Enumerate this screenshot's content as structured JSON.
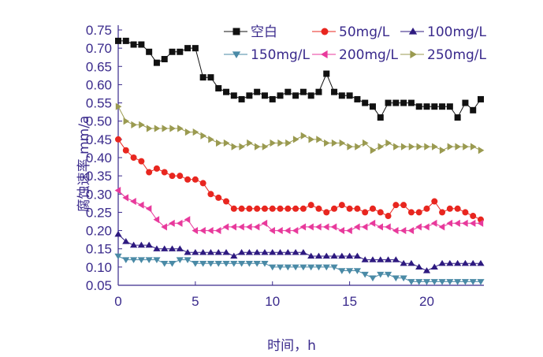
{
  "chart_data": {
    "type": "line",
    "title": "",
    "xlabel": "时间，h",
    "ylabel": "腐蚀速率,mm/a",
    "xlim": [
      0,
      23.5
    ],
    "ylim": [
      0.05,
      0.75
    ],
    "x_ticks": [
      "0",
      "5",
      "10",
      "15",
      "20"
    ],
    "y_ticks": [
      "0.05",
      "0.10",
      "0.15",
      "0.20",
      "0.25",
      "0.30",
      "0.35",
      "0.40",
      "0.45",
      "0.50",
      "0.55",
      "0.60",
      "0.65",
      "0.70",
      "0.75"
    ],
    "grid": false,
    "legend_position": "top-right",
    "x": [
      0.0,
      0.5,
      1.0,
      1.5,
      2.0,
      2.5,
      3.0,
      3.5,
      4.0,
      4.5,
      5.0,
      5.5,
      6.0,
      6.5,
      7.0,
      7.5,
      8.0,
      8.5,
      9.0,
      9.5,
      10.0,
      10.5,
      11.0,
      11.5,
      12.0,
      12.5,
      13.0,
      13.5,
      14.0,
      14.5,
      15.0,
      15.5,
      16.0,
      16.5,
      17.0,
      17.5,
      18.0,
      18.5,
      19.0,
      19.5,
      20.0,
      20.5,
      21.0,
      21.5,
      22.0,
      22.5,
      23.0,
      23.5
    ],
    "series": [
      {
        "name": "空白",
        "color": "#111111",
        "marker": "square",
        "values": [
          0.72,
          0.72,
          0.71,
          0.71,
          0.69,
          0.66,
          0.67,
          0.69,
          0.69,
          0.7,
          0.7,
          0.62,
          0.62,
          0.59,
          0.58,
          0.57,
          0.56,
          0.57,
          0.58,
          0.57,
          0.56,
          0.57,
          0.58,
          0.57,
          0.58,
          0.57,
          0.58,
          0.63,
          0.58,
          0.57,
          0.57,
          0.56,
          0.55,
          0.54,
          0.51,
          0.55,
          0.55,
          0.55,
          0.55,
          0.54,
          0.54,
          0.54,
          0.54,
          0.54,
          0.51,
          0.55,
          0.53,
          0.56
        ]
      },
      {
        "name": "50mg/L",
        "color": "#e8261f",
        "marker": "circle",
        "values": [
          0.45,
          0.42,
          0.4,
          0.39,
          0.36,
          0.37,
          0.36,
          0.35,
          0.35,
          0.34,
          0.34,
          0.33,
          0.3,
          0.29,
          0.28,
          0.26,
          0.26,
          0.26,
          0.26,
          0.26,
          0.26,
          0.26,
          0.26,
          0.26,
          0.26,
          0.27,
          0.26,
          0.25,
          0.26,
          0.27,
          0.26,
          0.26,
          0.25,
          0.26,
          0.25,
          0.24,
          0.27,
          0.27,
          0.25,
          0.25,
          0.26,
          0.28,
          0.25,
          0.26,
          0.26,
          0.25,
          0.24,
          0.23
        ]
      },
      {
        "name": "100mg/L",
        "color": "#2e1a80",
        "marker": "triangle-up",
        "values": [
          0.19,
          0.17,
          0.16,
          0.16,
          0.16,
          0.15,
          0.15,
          0.15,
          0.15,
          0.14,
          0.14,
          0.14,
          0.14,
          0.14,
          0.14,
          0.13,
          0.14,
          0.14,
          0.14,
          0.14,
          0.14,
          0.14,
          0.14,
          0.14,
          0.14,
          0.13,
          0.13,
          0.13,
          0.13,
          0.13,
          0.13,
          0.13,
          0.12,
          0.12,
          0.12,
          0.12,
          0.12,
          0.11,
          0.11,
          0.1,
          0.09,
          0.1,
          0.11,
          0.11,
          0.11,
          0.11,
          0.11,
          0.11
        ]
      },
      {
        "name": "150mg/L",
        "color": "#4a8aa6",
        "marker": "triangle-down",
        "values": [
          0.13,
          0.12,
          0.12,
          0.12,
          0.12,
          0.12,
          0.11,
          0.11,
          0.12,
          0.12,
          0.11,
          0.11,
          0.11,
          0.11,
          0.11,
          0.11,
          0.11,
          0.11,
          0.11,
          0.11,
          0.1,
          0.1,
          0.1,
          0.1,
          0.1,
          0.1,
          0.1,
          0.1,
          0.1,
          0.09,
          0.09,
          0.09,
          0.08,
          0.07,
          0.08,
          0.08,
          0.07,
          0.07,
          0.06,
          0.06,
          0.06,
          0.06,
          0.06,
          0.06,
          0.06,
          0.06,
          0.06,
          0.06
        ]
      },
      {
        "name": "200mg/L",
        "color": "#e83a9c",
        "marker": "triangle-left",
        "values": [
          0.31,
          0.29,
          0.28,
          0.27,
          0.26,
          0.23,
          0.21,
          0.22,
          0.22,
          0.23,
          0.2,
          0.2,
          0.2,
          0.2,
          0.21,
          0.21,
          0.21,
          0.21,
          0.21,
          0.22,
          0.2,
          0.2,
          0.2,
          0.2,
          0.21,
          0.21,
          0.21,
          0.21,
          0.21,
          0.2,
          0.2,
          0.21,
          0.21,
          0.22,
          0.21,
          0.21,
          0.2,
          0.2,
          0.2,
          0.21,
          0.21,
          0.22,
          0.21,
          0.22,
          0.22,
          0.22,
          0.22,
          0.22
        ]
      },
      {
        "name": "250mg/L",
        "color": "#9a9a50",
        "marker": "triangle-right",
        "values": [
          0.54,
          0.5,
          0.49,
          0.49,
          0.48,
          0.48,
          0.48,
          0.48,
          0.48,
          0.47,
          0.47,
          0.46,
          0.45,
          0.44,
          0.44,
          0.43,
          0.43,
          0.44,
          0.43,
          0.43,
          0.44,
          0.44,
          0.44,
          0.45,
          0.46,
          0.45,
          0.45,
          0.44,
          0.44,
          0.44,
          0.43,
          0.43,
          0.44,
          0.42,
          0.43,
          0.44,
          0.43,
          0.43,
          0.43,
          0.43,
          0.43,
          0.43,
          0.42,
          0.43,
          0.43,
          0.43,
          0.43,
          0.42
        ]
      }
    ]
  }
}
